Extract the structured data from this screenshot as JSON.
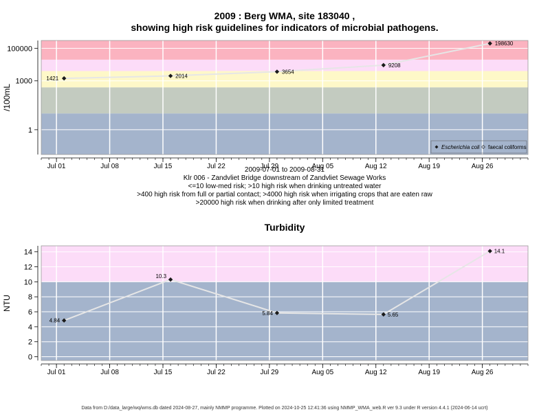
{
  "chart_data": [
    {
      "type": "scatter",
      "title_line1": "2009 : Berg WMA, site 183040 ,",
      "title_line2": "showing high risk guidelines for indicators of microbial pathogens.",
      "ylabel": "/100mL",
      "y_scale": "log",
      "y_ticks": [
        1,
        1000,
        100000
      ],
      "y_tick_labels": [
        "1",
        "1000",
        "100000"
      ],
      "x_ticks": [
        "Jul 01",
        "Jul 08",
        "Jul 15",
        "Jul 22",
        "Jul 29",
        "Aug 05",
        "Aug 12",
        "Aug 19",
        "Aug 26"
      ],
      "x_range": [
        "2009-06-29",
        "2009-09-01"
      ],
      "bands": [
        {
          "from": 0.03,
          "to": 10,
          "color": "#a4b4cc"
        },
        {
          "from": 10,
          "to": 400,
          "color": "#c3cbc0"
        },
        {
          "from": 400,
          "to": 4000,
          "color": "#fef8c8"
        },
        {
          "from": 4000,
          "to": 20000,
          "color": "#fcdcf8"
        },
        {
          "from": 20000,
          "to": 300000,
          "color": "#fbb3c0"
        }
      ],
      "series": [
        {
          "name": "Escherichia coli",
          "x": [
            "2009-07-02",
            "2009-07-16",
            "2009-07-30",
            "2009-08-13",
            "2009-08-27"
          ],
          "values": [
            1421,
            2014,
            3654,
            9208,
            198630
          ],
          "labels": [
            "1421",
            "2014",
            "3654",
            "9208",
            "198630"
          ]
        }
      ],
      "legend": {
        "position": "bottom-right",
        "entries": [
          "Escherichia coli",
          "faecal coliforms"
        ]
      },
      "subtitle_lines": [
        "2009-07-01 to 2009-08-31",
        "Klr 006 - Zandvliet Bridge downstream of Zandvliet Sewage Works",
        "<=10 low-med risk; >10 high risk when drinking untreated water",
        ">400 high risk from full or partial contact; >4000 high risk when irrigating crops that are eaten raw",
        ">20000 high risk when drinking after only limited treatment"
      ]
    },
    {
      "type": "line",
      "title": "Turbidity",
      "ylabel": "NTU",
      "ylim": [
        -0.5,
        14.8
      ],
      "y_ticks": [
        0,
        2,
        4,
        6,
        8,
        10,
        12,
        14
      ],
      "x_ticks": [
        "Jul 01",
        "Jul 08",
        "Jul 15",
        "Jul 22",
        "Jul 29",
        "Aug 05",
        "Aug 12",
        "Aug 19",
        "Aug 26"
      ],
      "x_range": [
        "2009-06-29",
        "2009-09-01"
      ],
      "bands": [
        {
          "from": -0.5,
          "to": 10,
          "color": "#a4b4cc"
        },
        {
          "from": 10,
          "to": 14.8,
          "color": "#fcdcf8"
        }
      ],
      "series": [
        {
          "x": [
            "2009-07-02",
            "2009-07-16",
            "2009-07-30",
            "2009-08-13",
            "2009-08-27"
          ],
          "values": [
            4.84,
            10.3,
            5.84,
            5.65,
            14.1
          ],
          "labels": [
            "4.84",
            "10.3",
            "5.84",
            "5.65",
            "14.1"
          ]
        }
      ]
    }
  ],
  "footer": "Data from D:/data_large/wq/wms.db dated 2024-08-27, mainly NMMP programme. Plotted on 2024-10-25 12:41:36 using NMMP_WMA_web.R ver 9.3 under R version 4.4.1 (2024-06-14 ucrt)",
  "colors": {
    "point": "#1a1a1a",
    "line": "#e6e6e6",
    "grid": "#ffffff",
    "frame": "#9a9a9a"
  }
}
